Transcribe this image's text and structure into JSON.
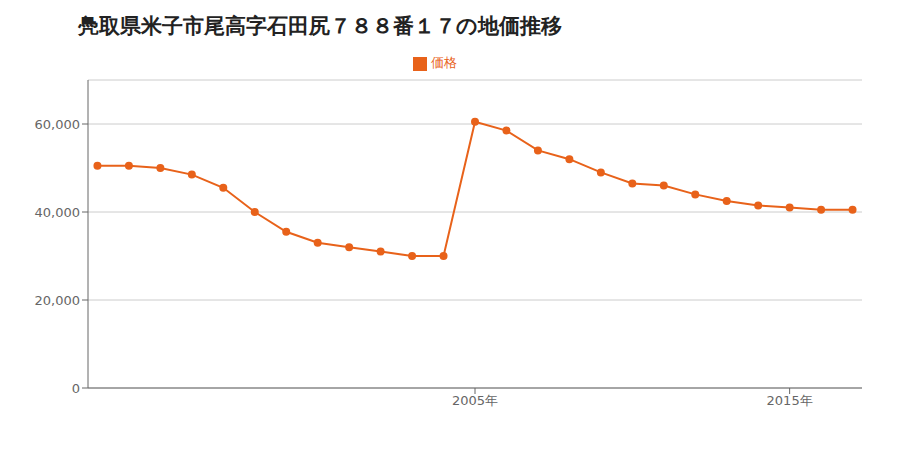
{
  "chart_data": {
    "type": "line",
    "title": "鳧取県米子市尾高字石田尻７８８番１７の地価推移",
    "x": [
      1993,
      1994,
      1995,
      1996,
      1997,
      1998,
      1999,
      2000,
      2001,
      2002,
      2003,
      2004,
      2005,
      2006,
      2007,
      2008,
      2009,
      2010,
      2011,
      2012,
      2013,
      2014,
      2015,
      2016,
      2017
    ],
    "series": [
      {
        "name": "価格",
        "color": "#e8621a",
        "marker": "circle",
        "line_style": "solid",
        "values": [
          50500,
          50500,
          50000,
          48500,
          45500,
          40000,
          35500,
          33000,
          32000,
          31000,
          30000,
          30000,
          60500,
          58500,
          54000,
          52000,
          49000,
          46500,
          46000,
          44000,
          42500,
          41500,
          41000,
          40500,
          40500
        ]
      }
    ],
    "xlim": [
      1992.7,
      2017.3
    ],
    "xticks": [
      {
        "value": 2005,
        "label": "2005年"
      },
      {
        "value": 2015,
        "label": "2015年"
      }
    ],
    "ylim": [
      0,
      70000
    ],
    "yticks": [
      0,
      {
        "value": 20000,
        "label": "20,000"
      },
      {
        "value": 40000,
        "label": "40,000"
      },
      {
        "value": 60000,
        "label": "60,000"
      }
    ],
    "grid": true,
    "legend": "top"
  }
}
